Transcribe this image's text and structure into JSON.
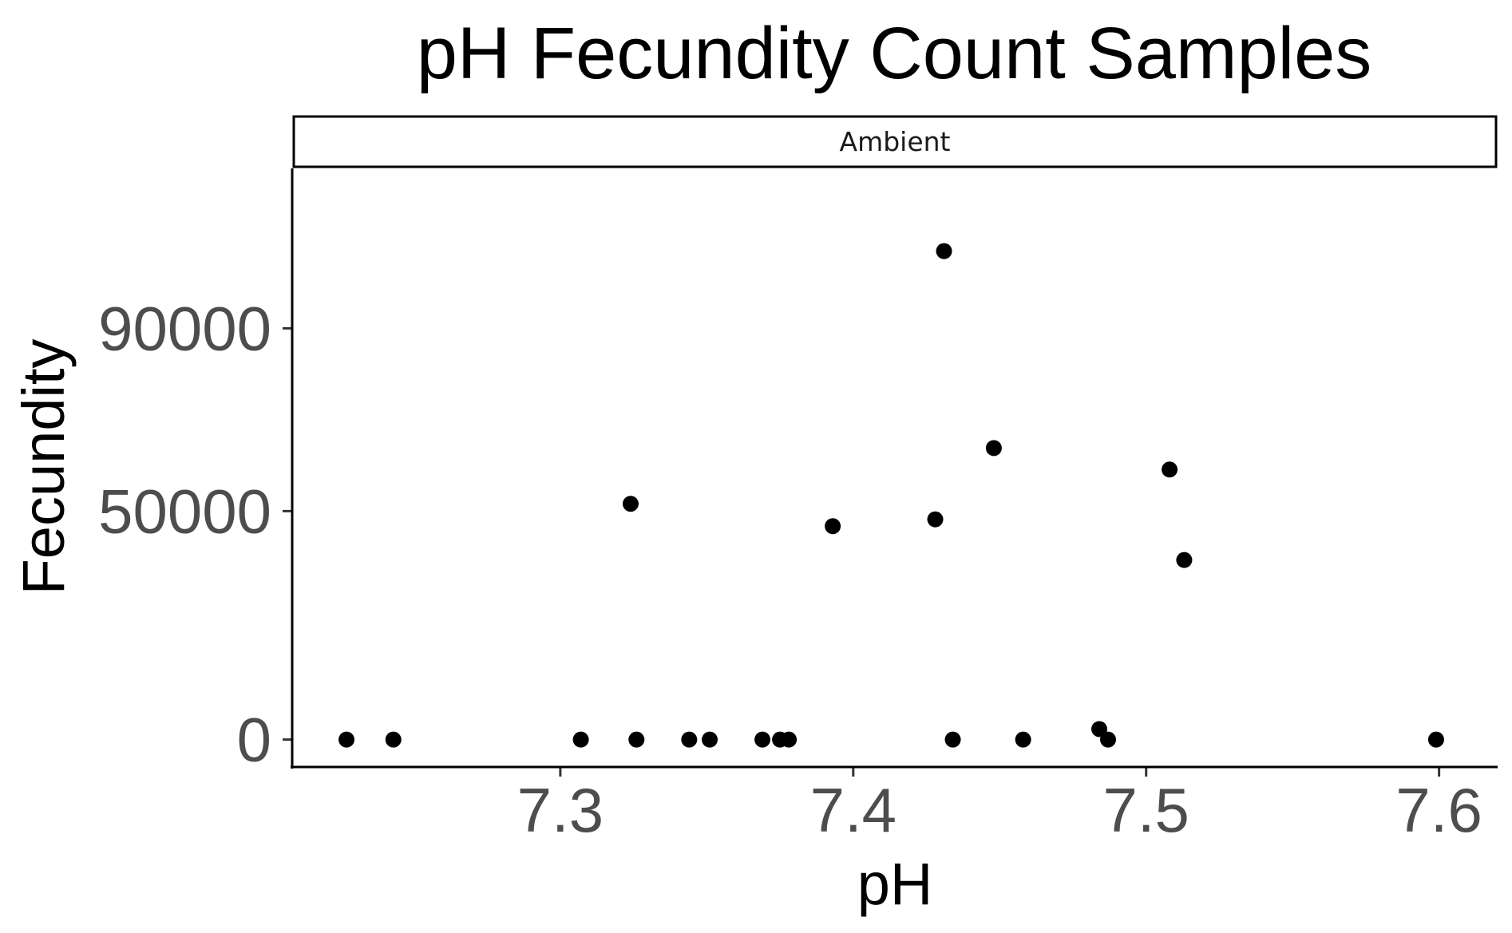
{
  "chart_data": {
    "type": "scatter",
    "title": "pH Fecundity Count Samples",
    "facet_label": "Ambient",
    "xlabel": "pH",
    "ylabel": "Fecundity",
    "xlim": [
      7.209,
      7.62
    ],
    "ylim": [
      -6000,
      125000
    ],
    "x_ticks": [
      7.3,
      7.4,
      7.5,
      7.6
    ],
    "x_tick_labels": [
      "7.3",
      "7.4",
      "7.5",
      "7.6"
    ],
    "y_ticks": [
      0,
      50000,
      90000
    ],
    "y_tick_labels": [
      "0",
      "50000",
      "90000"
    ],
    "grid": false,
    "legend": "none",
    "point_color": "#000000",
    "series": [
      {
        "points": [
          {
            "x": 7.227,
            "y": 0
          },
          {
            "x": 7.243,
            "y": 0
          },
          {
            "x": 7.307,
            "y": 0
          },
          {
            "x": 7.326,
            "y": 0
          },
          {
            "x": 7.344,
            "y": 0
          },
          {
            "x": 7.351,
            "y": 0
          },
          {
            "x": 7.369,
            "y": 0
          },
          {
            "x": 7.375,
            "y": 0
          },
          {
            "x": 7.378,
            "y": 0
          },
          {
            "x": 7.434,
            "y": 0
          },
          {
            "x": 7.458,
            "y": 0
          },
          {
            "x": 7.487,
            "y": 0
          },
          {
            "x": 7.599,
            "y": 0
          },
          {
            "x": 7.484,
            "y": 2300
          },
          {
            "x": 7.324,
            "y": 51600
          },
          {
            "x": 7.393,
            "y": 46700
          },
          {
            "x": 7.428,
            "y": 48200
          },
          {
            "x": 7.431,
            "y": 106900
          },
          {
            "x": 7.448,
            "y": 63800
          },
          {
            "x": 7.508,
            "y": 59100
          },
          {
            "x": 7.513,
            "y": 39300
          }
        ]
      }
    ]
  }
}
